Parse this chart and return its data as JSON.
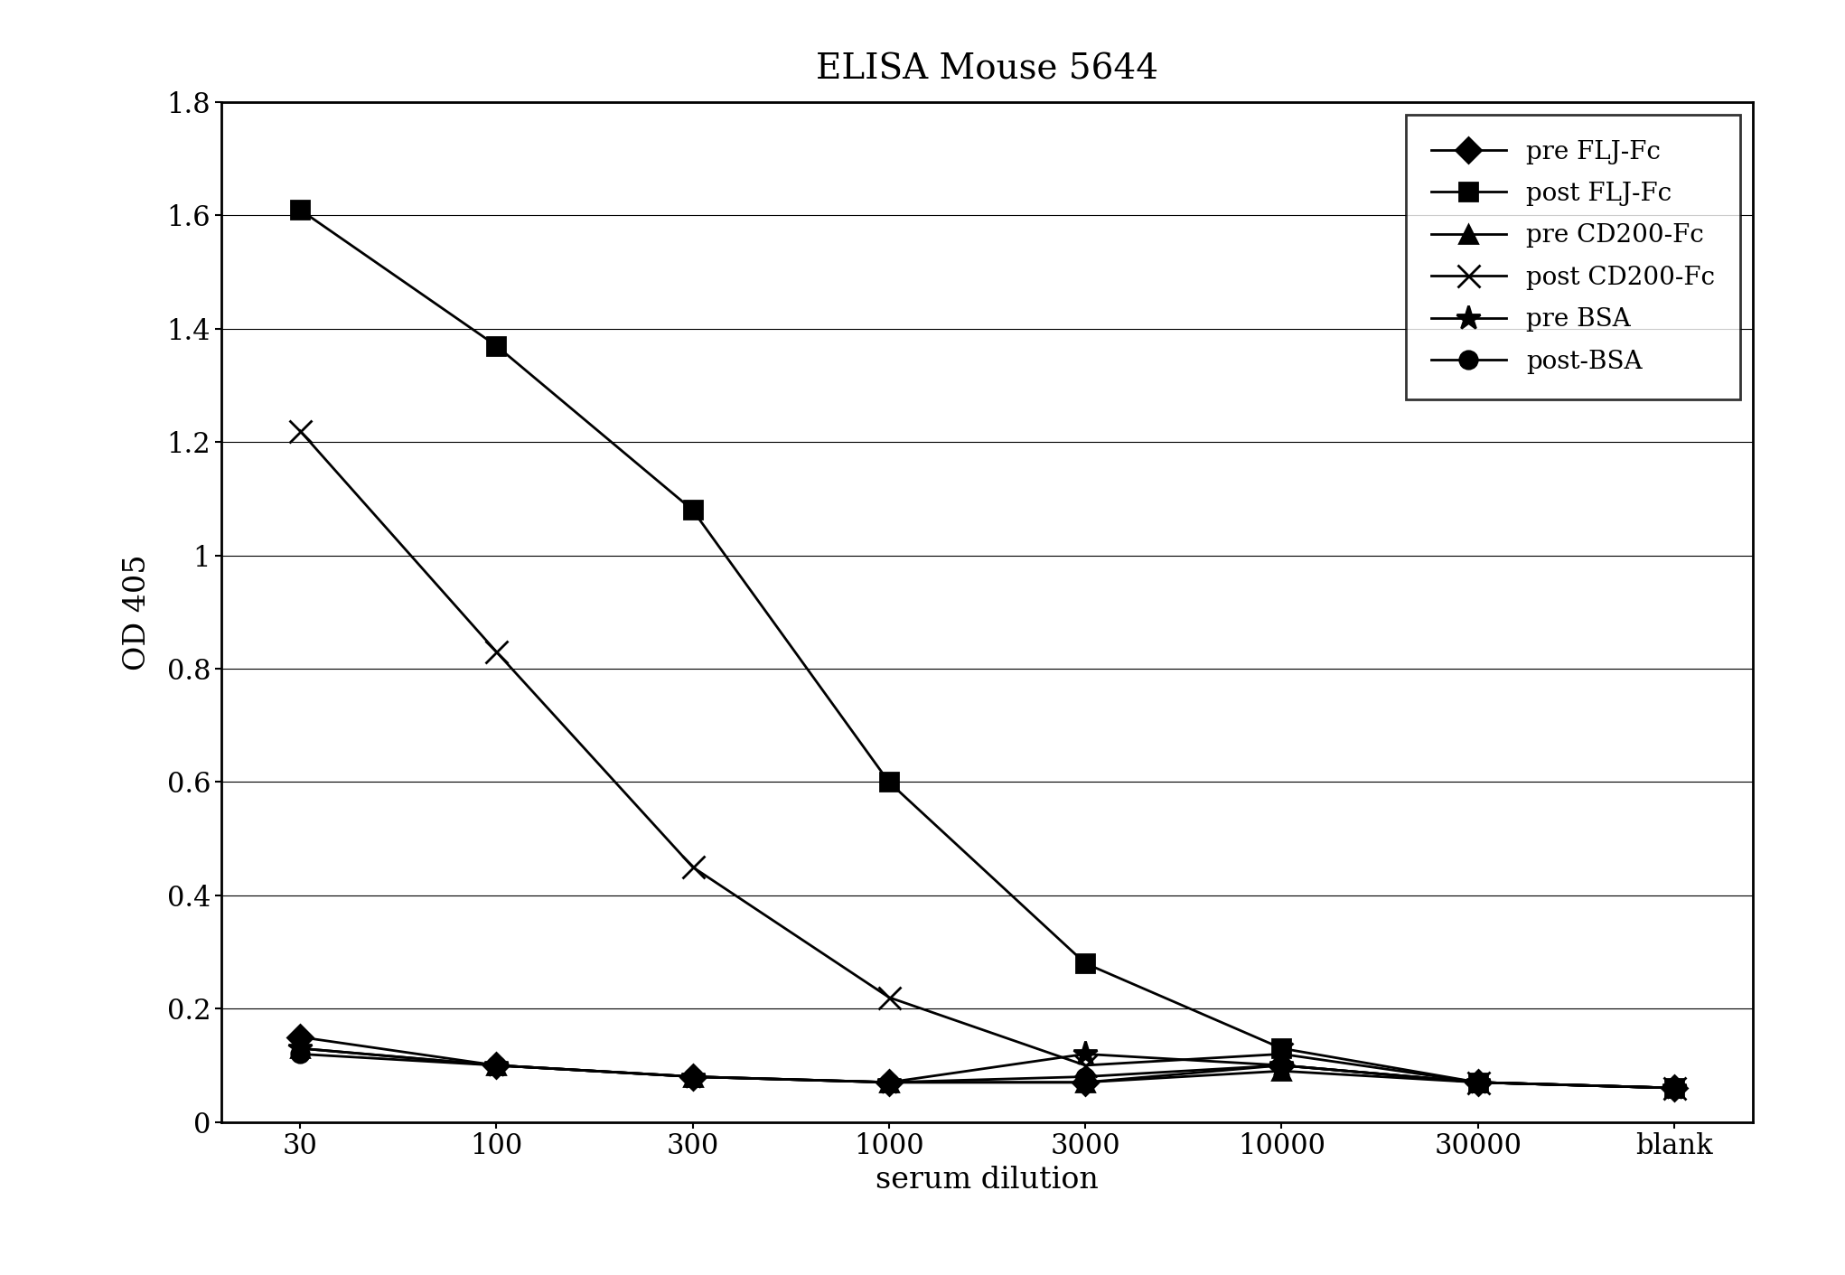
{
  "title": "ELISA Mouse 5644",
  "xlabel": "serum dilution",
  "ylabel": "OD 405",
  "x_labels": [
    "30",
    "100",
    "300",
    "1000",
    "3000",
    "10000",
    "30000",
    "blank"
  ],
  "ylim": [
    0,
    1.8
  ],
  "yticks": [
    0,
    0.2,
    0.4,
    0.6,
    0.8,
    1.0,
    1.2,
    1.4,
    1.6,
    1.8
  ],
  "series": [
    {
      "label": "pre FLJ-Fc",
      "marker": "D",
      "marker_size": 14,
      "color": "black",
      "linewidth": 2.0,
      "values": [
        0.15,
        0.1,
        0.08,
        0.07,
        0.07,
        0.1,
        0.07,
        0.06
      ]
    },
    {
      "label": "post FLJ-Fc",
      "marker": "s",
      "marker_size": 14,
      "color": "black",
      "linewidth": 2.0,
      "values": [
        1.61,
        1.37,
        1.08,
        0.6,
        0.28,
        0.13,
        0.07,
        0.06
      ]
    },
    {
      "label": "pre CD200-Fc",
      "marker": "^",
      "marker_size": 14,
      "color": "black",
      "linewidth": 2.0,
      "values": [
        0.13,
        0.1,
        0.08,
        0.07,
        0.07,
        0.09,
        0.07,
        0.06
      ]
    },
    {
      "label": "post CD200-Fc",
      "marker": "x",
      "marker_size": 18,
      "color": "black",
      "linewidth": 2.0,
      "values": [
        1.22,
        0.83,
        0.45,
        0.22,
        0.1,
        0.12,
        0.07,
        0.06
      ]
    },
    {
      "label": "pre BSA",
      "marker": "*",
      "marker_size": 20,
      "color": "black",
      "linewidth": 2.0,
      "values": [
        0.13,
        0.1,
        0.08,
        0.07,
        0.12,
        0.1,
        0.07,
        0.06
      ]
    },
    {
      "label": "post-BSA",
      "marker": "o",
      "marker_size": 14,
      "color": "black",
      "linewidth": 2.0,
      "values": [
        0.12,
        0.1,
        0.08,
        0.07,
        0.08,
        0.1,
        0.07,
        0.06
      ]
    }
  ],
  "legend_loc": "upper right",
  "background_color": "white",
  "title_fontsize": 28,
  "label_fontsize": 24,
  "tick_fontsize": 22,
  "legend_fontsize": 20
}
